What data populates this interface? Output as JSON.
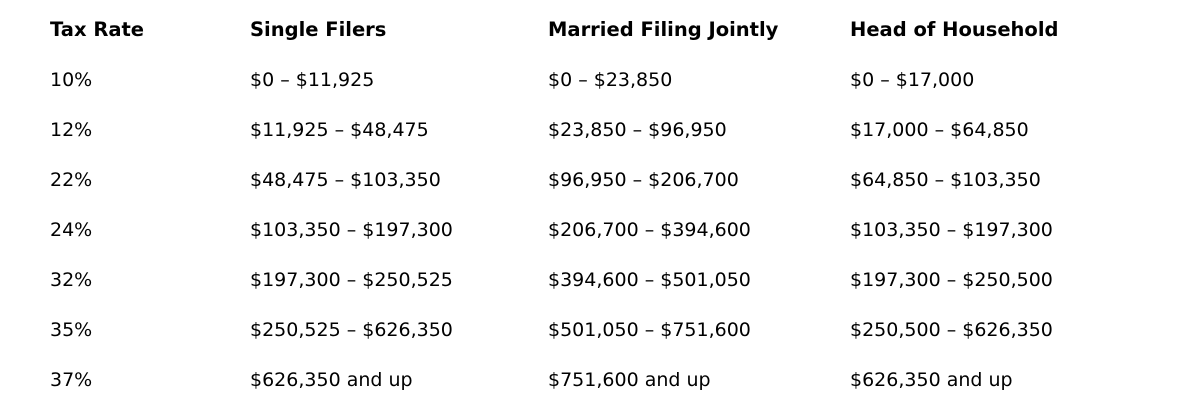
{
  "table": {
    "columns": [
      "Tax Rate",
      "Single Filers",
      "Married Filing Jointly",
      "Head of Household"
    ],
    "rows": [
      {
        "rate": "10%",
        "single": "$0 – $11,925",
        "married": "$0 – $23,850",
        "hoh": "$0 – $17,000"
      },
      {
        "rate": "12%",
        "single": "$11,925 – $48,475",
        "married": "$23,850 – $96,950",
        "hoh": "$17,000 – $64,850"
      },
      {
        "rate": "22%",
        "single": "$48,475 – $103,350",
        "married": "$96,950 – $206,700",
        "hoh": "$64,850 – $103,350"
      },
      {
        "rate": "24%",
        "single": "$103,350 – $197,300",
        "married": "$206,700 – $394,600",
        "hoh": "$103,350 – $197,300"
      },
      {
        "rate": "32%",
        "single": "$197,300 – $250,525",
        "married": "$394,600 – $501,050",
        "hoh": "$197,300 – $250,500"
      },
      {
        "rate": "35%",
        "single": "$250,525 – $626,350",
        "married": "$501,050 – $751,600",
        "hoh": "$250,500 – $626,350"
      },
      {
        "rate": "37%",
        "single": "$626,350 and up",
        "married": "$751,600 and up",
        "hoh": "$626,350 and up"
      }
    ]
  },
  "colors": {
    "text": "#000000",
    "background": "#ffffff"
  }
}
